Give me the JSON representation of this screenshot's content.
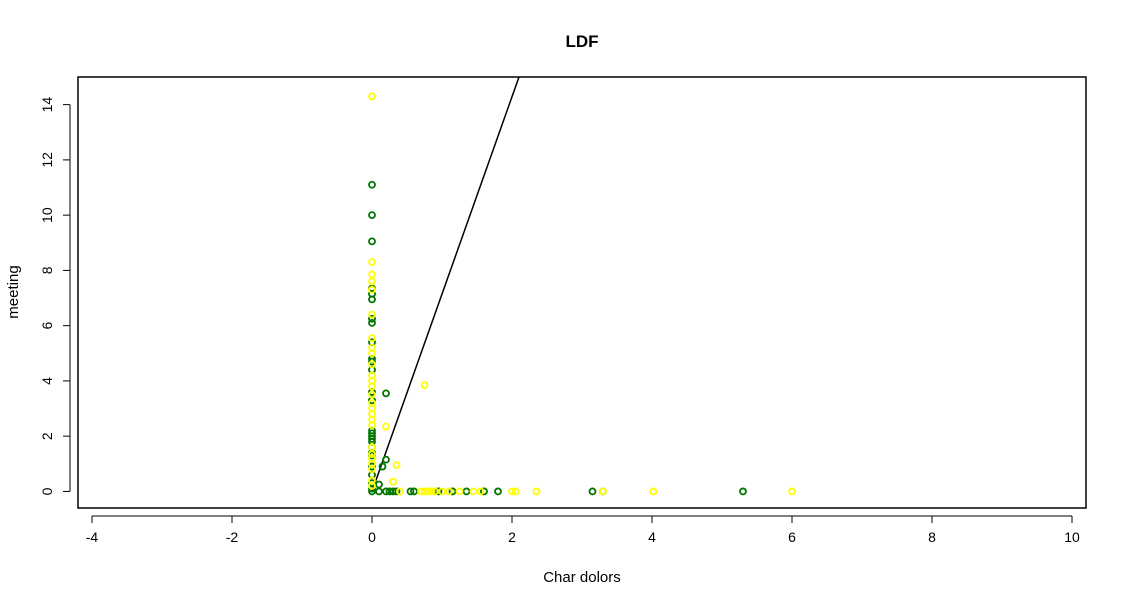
{
  "chart_data": {
    "type": "scatter",
    "title": "LDF",
    "xlabel": "Char dolors",
    "ylabel": "meeting",
    "xlim": [
      -4.2,
      10.2
    ],
    "ylim": [
      -0.6,
      15.0
    ],
    "x_ticks": [
      -4,
      -2,
      0,
      2,
      4,
      6,
      8,
      10
    ],
    "y_ticks": [
      0,
      2,
      4,
      6,
      8,
      10,
      12,
      14
    ],
    "x_tick_labels": [
      "-4",
      "-2",
      "0",
      "2",
      "4",
      "6",
      "8",
      "10"
    ],
    "y_tick_labels": [
      "0",
      "2",
      "4",
      "6",
      "8",
      "10",
      "12",
      "14"
    ],
    "grid": false,
    "legend": false,
    "series": [
      {
        "color": "#007700",
        "points": [
          [
            0,
            11.1
          ],
          [
            0,
            10.0
          ],
          [
            0,
            9.05
          ],
          [
            0,
            7.35
          ],
          [
            0,
            7.15
          ],
          [
            0,
            6.95
          ],
          [
            0,
            6.25
          ],
          [
            0,
            6.1
          ],
          [
            0,
            5.4
          ],
          [
            0,
            4.8
          ],
          [
            0,
            4.7
          ],
          [
            0,
            4.4
          ],
          [
            0,
            3.6
          ],
          [
            0,
            3.3
          ],
          [
            0,
            2.2
          ],
          [
            0,
            2.1
          ],
          [
            0,
            2.0
          ],
          [
            0,
            1.9
          ],
          [
            0,
            1.8
          ],
          [
            0,
            1.6
          ],
          [
            0,
            1.4
          ],
          [
            0,
            1.3
          ],
          [
            0,
            0.9
          ],
          [
            0,
            0.6
          ],
          [
            0,
            0.3
          ],
          [
            0,
            0.1
          ],
          [
            0.2,
            3.55
          ],
          [
            0.2,
            1.15
          ],
          [
            0.15,
            0.9
          ],
          [
            0.1,
            0.25
          ],
          [
            0.1,
            0
          ],
          [
            0.2,
            0
          ],
          [
            0.25,
            0
          ],
          [
            0.3,
            0
          ],
          [
            0.35,
            0
          ],
          [
            0.55,
            0
          ],
          [
            0.6,
            0
          ],
          [
            0.95,
            0
          ],
          [
            1.15,
            0
          ],
          [
            1.35,
            0
          ],
          [
            1.6,
            0
          ],
          [
            1.8,
            0
          ],
          [
            3.15,
            0
          ],
          [
            3.3,
            0
          ],
          [
            5.3,
            0
          ],
          [
            0,
            0
          ]
        ]
      },
      {
        "color": "#ffff00",
        "points": [
          [
            0,
            14.3
          ],
          [
            0,
            8.3
          ],
          [
            0,
            7.85
          ],
          [
            0,
            7.6
          ],
          [
            0,
            7.3
          ],
          [
            0,
            6.4
          ],
          [
            0,
            5.55
          ],
          [
            0,
            5.2
          ],
          [
            0,
            5.0
          ],
          [
            0,
            4.6
          ],
          [
            0,
            4.2
          ],
          [
            0,
            4.0
          ],
          [
            0,
            3.8
          ],
          [
            0,
            3.5
          ],
          [
            0,
            3.2
          ],
          [
            0,
            3.0
          ],
          [
            0,
            2.8
          ],
          [
            0,
            2.6
          ],
          [
            0,
            2.4
          ],
          [
            0,
            1.6
          ],
          [
            0,
            1.35
          ],
          [
            0,
            1.2
          ],
          [
            0,
            1.0
          ],
          [
            0,
            0.8
          ],
          [
            0,
            0.4
          ],
          [
            0,
            0.2
          ],
          [
            0.75,
            3.85
          ],
          [
            0.2,
            2.35
          ],
          [
            0.35,
            0.95
          ],
          [
            0.3,
            0.35
          ],
          [
            0.4,
            0
          ],
          [
            0.7,
            0
          ],
          [
            0.75,
            0
          ],
          [
            0.8,
            0
          ],
          [
            0.85,
            0
          ],
          [
            0.9,
            0
          ],
          [
            1.0,
            0
          ],
          [
            1.1,
            0
          ],
          [
            1.25,
            0
          ],
          [
            1.45,
            0
          ],
          [
            1.55,
            0
          ],
          [
            2.0,
            0
          ],
          [
            2.05,
            0
          ],
          [
            2.35,
            0
          ],
          [
            3.3,
            0
          ],
          [
            4.02,
            0
          ],
          [
            6.0,
            0
          ]
        ]
      }
    ],
    "lines": [
      {
        "color": "#000000",
        "x": [
          0,
          2.1
        ],
        "y": [
          0,
          15.0
        ]
      }
    ]
  }
}
